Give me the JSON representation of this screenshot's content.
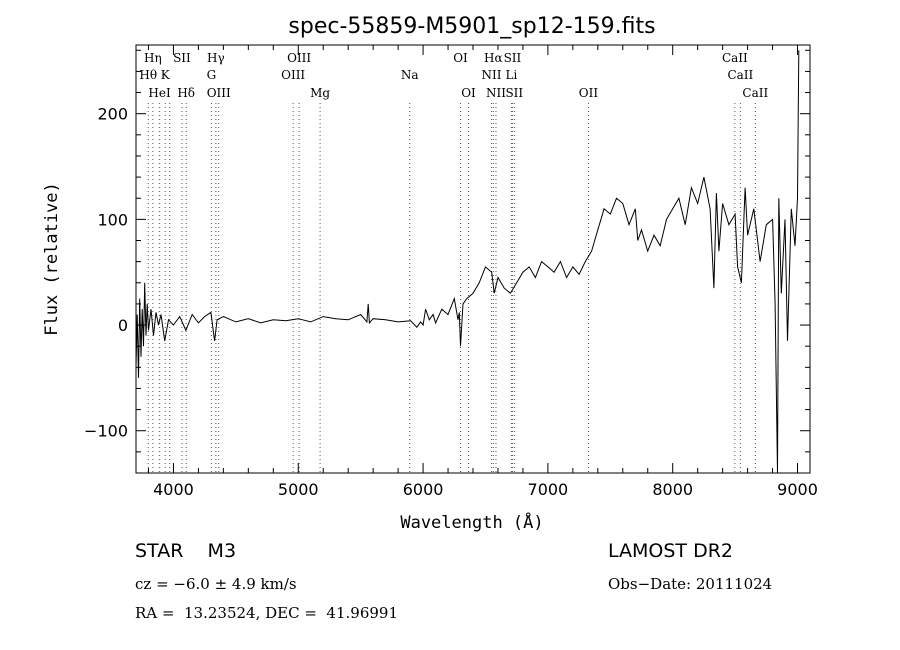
{
  "chart_data": {
    "type": "line",
    "title": "spec-55859-M5901_sp12-159.fits",
    "xlabel": "Wavelength (Å)",
    "ylabel": "Flux (relative)",
    "xlim": [
      3700,
      9100
    ],
    "ylim": [
      -140,
      265
    ],
    "xticks": [
      4000,
      5000,
      6000,
      7000,
      8000,
      9000
    ],
    "yticks": [
      -100,
      0,
      100,
      200
    ],
    "grid": false,
    "legend": "none",
    "series": [
      {
        "x": [
          3700,
          3710,
          3720,
          3730,
          3740,
          3750,
          3760,
          3770,
          3780,
          3790,
          3800,
          3820,
          3840,
          3860,
          3880,
          3900,
          3930,
          3960,
          4000,
          4050,
          4100,
          4150,
          4200,
          4250,
          4300,
          4330,
          4350,
          4400,
          4500,
          4600,
          4700,
          4800,
          4900,
          5000,
          5100,
          5200,
          5300,
          5400,
          5500,
          5550,
          5560,
          5570,
          5600,
          5700,
          5800,
          5900,
          5950,
          5980,
          6000,
          6020,
          6050,
          6080,
          6100,
          6150,
          6200,
          6250,
          6280,
          6290,
          6300,
          6320,
          6350,
          6400,
          6450,
          6500,
          6550,
          6570,
          6600,
          6650,
          6700,
          6750,
          6800,
          6850,
          6900,
          6950,
          7000,
          7050,
          7100,
          7150,
          7200,
          7250,
          7300,
          7350,
          7400,
          7450,
          7500,
          7550,
          7600,
          7650,
          7700,
          7720,
          7750,
          7800,
          7850,
          7900,
          7950,
          8000,
          8050,
          8100,
          8150,
          8200,
          8250,
          8300,
          8330,
          8350,
          8370,
          8400,
          8450,
          8500,
          8520,
          8550,
          8580,
          8600,
          8650,
          8700,
          8750,
          8800,
          8820,
          8840,
          8850,
          8870,
          8900,
          8920,
          8950,
          8980,
          9000,
          9010
        ],
        "y": [
          -40,
          10,
          -50,
          25,
          -30,
          15,
          -20,
          40,
          -10,
          20,
          -5,
          15,
          -10,
          12,
          0,
          10,
          -15,
          5,
          0,
          8,
          -5,
          10,
          2,
          8,
          12,
          -15,
          5,
          8,
          3,
          6,
          2,
          5,
          4,
          6,
          3,
          8,
          6,
          5,
          10,
          3,
          20,
          2,
          6,
          5,
          3,
          4,
          -2,
          3,
          0,
          15,
          5,
          10,
          2,
          15,
          10,
          25,
          5,
          12,
          -20,
          20,
          25,
          30,
          40,
          55,
          50,
          30,
          45,
          35,
          30,
          40,
          50,
          55,
          45,
          60,
          55,
          50,
          60,
          45,
          55,
          48,
          60,
          70,
          90,
          110,
          105,
          120,
          115,
          95,
          110,
          80,
          90,
          70,
          85,
          75,
          100,
          110,
          120,
          95,
          130,
          115,
          140,
          110,
          35,
          125,
          70,
          115,
          95,
          105,
          55,
          40,
          130,
          85,
          110,
          60,
          95,
          100,
          20,
          -140,
          120,
          30,
          100,
          -15,
          110,
          75,
          120,
          260
        ],
        "line_styles": "solid"
      }
    ],
    "spectral_lines": [
      {
        "label": "Hη",
        "x": 3835,
        "row": 1
      },
      {
        "label": "SII",
        "x": 4068,
        "row": 1
      },
      {
        "label": "Hγ",
        "x": 4340,
        "row": 1
      },
      {
        "label": "OIII",
        "x": 5007,
        "row": 1
      },
      {
        "label": "OI",
        "x": 6300,
        "row": 1
      },
      {
        "label": "Hα",
        "x": 6563,
        "row": 1
      },
      {
        "label": "SII",
        "x": 6716,
        "row": 1
      },
      {
        "label": "CaII",
        "x": 8498,
        "row": 1
      },
      {
        "label": "Hθ",
        "x": 3798,
        "row": 2
      },
      {
        "label": "K",
        "x": 3934,
        "row": 2
      },
      {
        "label": "G",
        "x": 4304,
        "row": 2
      },
      {
        "label": "OIII",
        "x": 4959,
        "row": 2
      },
      {
        "label": "Na",
        "x": 5893,
        "row": 2
      },
      {
        "label": "NII",
        "x": 6548,
        "row": 2
      },
      {
        "label": "Li",
        "x": 6708,
        "row": 2
      },
      {
        "label": "CaII",
        "x": 8542,
        "row": 2
      },
      {
        "label": "HeI",
        "x": 3889,
        "row": 3
      },
      {
        "label": "Hδ",
        "x": 4102,
        "row": 3
      },
      {
        "label": "OIII",
        "x": 4363,
        "row": 3
      },
      {
        "label": "Mg",
        "x": 5175,
        "row": 3
      },
      {
        "label": "OI",
        "x": 6364,
        "row": 3
      },
      {
        "label": "NII",
        "x": 6584,
        "row": 3
      },
      {
        "label": "SII",
        "x": 6731,
        "row": 3
      },
      {
        "label": "OII",
        "x": 7325,
        "row": 3
      },
      {
        "label": "CaII",
        "x": 8662,
        "row": 3
      }
    ],
    "marker_lines": [
      3798,
      3835,
      3889,
      3934,
      3970,
      4068,
      4102,
      4304,
      4340,
      4363,
      4959,
      5007,
      5175,
      5893,
      6300,
      6364,
      6548,
      6563,
      6584,
      6708,
      6716,
      6731,
      7325,
      8498,
      8542,
      8662
    ]
  },
  "footer": {
    "object": "STAR    M3",
    "survey": "LAMOST DR2",
    "cz": "cz = −6.0 ± 4.9 km/s",
    "obs_date": "Obs−Date: 20111024",
    "radec": "RA =  13.23524, DEC =  41.96991"
  },
  "colors": {
    "axis": "#000000",
    "spectrum": "#000000",
    "marker": "#555555"
  }
}
